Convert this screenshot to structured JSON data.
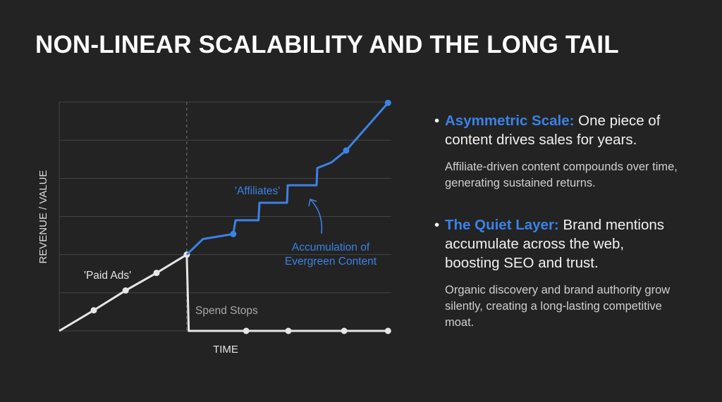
{
  "title": "NON-LINEAR SCALABILITY AND THE LONG TAIL",
  "colors": {
    "background": "#232323",
    "accent": "#3b82e6",
    "paid": "#e6e6e6",
    "grid": "#444444"
  },
  "chart_data": {
    "type": "line",
    "xlabel": "TIME",
    "ylabel": "REVENUE / VALUE",
    "xlim": [
      0,
      10
    ],
    "ylim": [
      0,
      6
    ],
    "grid": true,
    "annotations": {
      "paid_ads": "'Paid Ads'",
      "affiliates": "'Affiliates'",
      "spend_stops": "Spend Stops",
      "accumulation": [
        "Accumulation of",
        "Evergreen Content"
      ]
    },
    "series": [
      {
        "name": "'Paid Ads'",
        "color": "#e6e6e6",
        "points": [
          [
            0,
            0
          ],
          [
            1.04,
            0.54
          ],
          [
            2.0,
            1.06
          ],
          [
            2.93,
            1.52
          ],
          [
            3.84,
            2.0
          ]
        ],
        "markers": [
          [
            1.04,
            0.54
          ],
          [
            2.0,
            1.06
          ],
          [
            2.93,
            1.52
          ],
          [
            3.84,
            2.0
          ]
        ]
      },
      {
        "name": "Spend Stops",
        "color": "#e6e6e6",
        "points": [
          [
            3.84,
            2.0
          ],
          [
            3.9,
            0
          ],
          [
            5.63,
            0
          ],
          [
            6.9,
            0
          ],
          [
            8.58,
            0
          ],
          [
            9.9,
            0
          ]
        ],
        "markers": [
          [
            5.63,
            0
          ],
          [
            6.9,
            0
          ],
          [
            8.58,
            0
          ],
          [
            9.9,
            0
          ]
        ]
      },
      {
        "name": "'Affiliates'",
        "color": "#3b82e6",
        "points": [
          [
            3.84,
            2.0
          ],
          [
            4.33,
            2.41
          ],
          [
            5.24,
            2.54
          ],
          [
            5.31,
            2.9
          ],
          [
            6.0,
            2.9
          ],
          [
            6.03,
            3.36
          ],
          [
            6.86,
            3.36
          ],
          [
            6.88,
            3.82
          ],
          [
            7.75,
            3.82
          ],
          [
            7.77,
            4.27
          ],
          [
            8.2,
            4.42
          ],
          [
            8.64,
            4.73
          ],
          [
            9.9,
            5.98
          ]
        ],
        "markers": [
          [
            5.24,
            2.54
          ],
          [
            8.64,
            4.73
          ],
          [
            9.9,
            5.98
          ]
        ]
      }
    ]
  },
  "points": [
    {
      "heading": "Asymmetric Scale:",
      "text": " One piece of content drives sales for years.",
      "detail": "Affiliate-driven content compounds over time, generating sustained returns."
    },
    {
      "heading": "The Quiet Layer:",
      "text": " Brand mentions accumulate across the web, boosting SEO and trust.",
      "detail": "Organic discovery and brand authority grow silently, creating a long-lasting competitive moat."
    }
  ]
}
